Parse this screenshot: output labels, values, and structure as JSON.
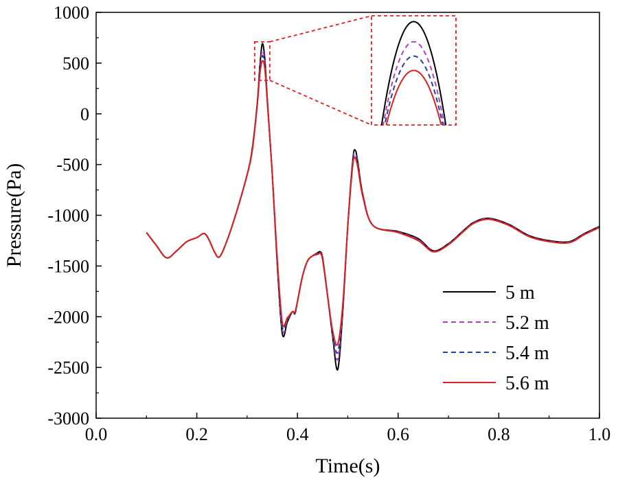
{
  "chart_data": {
    "type": "line",
    "xlabel": "Time(s)",
    "ylabel": "Pressure(Pa)",
    "xlim": [
      0.0,
      1.0
    ],
    "ylim": [
      -3000,
      1000
    ],
    "xticks": [
      "0.0",
      "0.2",
      "0.4",
      "0.6",
      "0.8",
      "1.0"
    ],
    "xtick_values": [
      0.0,
      0.2,
      0.4,
      0.6,
      0.8,
      1.0
    ],
    "yticks": [
      "1000",
      "500",
      "0",
      "-500",
      "-1000",
      "-1500",
      "-2000",
      "-2500",
      "-3000"
    ],
    "ytick_values": [
      1000,
      500,
      0,
      -500,
      -1000,
      -1500,
      -2000,
      -2500,
      -3000
    ],
    "grid": false,
    "legend_position": "bottom-right",
    "inset": {
      "type": "zoom",
      "x_range": [
        0.315,
        0.345
      ],
      "y_range": [
        330,
        710
      ],
      "border_color": "#e02020"
    },
    "x": [
      0.1,
      0.12,
      0.14,
      0.16,
      0.18,
      0.2,
      0.215,
      0.225,
      0.235,
      0.245,
      0.26,
      0.28,
      0.3,
      0.31,
      0.32,
      0.325,
      0.33,
      0.335,
      0.34,
      0.35,
      0.36,
      0.37,
      0.38,
      0.39,
      0.395,
      0.4,
      0.41,
      0.42,
      0.43,
      0.44,
      0.445,
      0.45,
      0.46,
      0.47,
      0.48,
      0.49,
      0.5,
      0.51,
      0.515,
      0.52,
      0.53,
      0.55,
      0.6,
      0.64,
      0.67,
      0.7,
      0.73,
      0.75,
      0.78,
      0.82,
      0.86,
      0.9,
      0.94,
      0.97,
      1.0
    ],
    "series": [
      {
        "name": "5 m",
        "color": "#000000",
        "dash": "solid",
        "values": [
          -1170,
          -1300,
          -1420,
          -1350,
          -1260,
          -1220,
          -1180,
          -1250,
          -1360,
          -1410,
          -1250,
          -950,
          -600,
          -350,
          100,
          450,
          690,
          550,
          150,
          -600,
          -1500,
          -2170,
          -2050,
          -1950,
          -1970,
          -1850,
          -1600,
          -1450,
          -1400,
          -1370,
          -1360,
          -1420,
          -1800,
          -2200,
          -2520,
          -1950,
          -1100,
          -450,
          -360,
          -480,
          -800,
          -1100,
          -1160,
          -1230,
          -1350,
          -1280,
          -1150,
          -1070,
          -1030,
          -1090,
          -1200,
          -1250,
          -1260,
          -1180,
          -1110
        ]
      },
      {
        "name": "5.2 m",
        "color": "#b040c0",
        "dash": "dashed",
        "values": [
          -1170,
          -1300,
          -1420,
          -1350,
          -1260,
          -1220,
          -1180,
          -1250,
          -1360,
          -1410,
          -1250,
          -950,
          -600,
          -360,
          90,
          420,
          620,
          510,
          140,
          -600,
          -1480,
          -2130,
          -2030,
          -1950,
          -1965,
          -1850,
          -1600,
          -1450,
          -1400,
          -1375,
          -1365,
          -1430,
          -1800,
          -2180,
          -2420,
          -1920,
          -1100,
          -470,
          -390,
          -500,
          -810,
          -1100,
          -1165,
          -1240,
          -1355,
          -1285,
          -1155,
          -1075,
          -1035,
          -1095,
          -1205,
          -1255,
          -1265,
          -1185,
          -1115
        ]
      },
      {
        "name": "5.4 m",
        "color": "#2040a0",
        "dash": "dashed",
        "values": [
          -1170,
          -1300,
          -1420,
          -1350,
          -1260,
          -1220,
          -1180,
          -1250,
          -1360,
          -1410,
          -1250,
          -950,
          -600,
          -365,
          85,
          400,
          570,
          480,
          130,
          -600,
          -1460,
          -2100,
          -2020,
          -1950,
          -1960,
          -1850,
          -1600,
          -1450,
          -1400,
          -1380,
          -1370,
          -1435,
          -1800,
          -2160,
          -2350,
          -1900,
          -1100,
          -480,
          -410,
          -510,
          -815,
          -1100,
          -1168,
          -1245,
          -1358,
          -1288,
          -1158,
          -1078,
          -1038,
          -1098,
          -1208,
          -1258,
          -1268,
          -1188,
          -1118
        ]
      },
      {
        "name": "5.6 m",
        "color": "#e02020",
        "dash": "solid",
        "values": [
          -1170,
          -1300,
          -1420,
          -1350,
          -1260,
          -1220,
          -1180,
          -1250,
          -1360,
          -1410,
          -1250,
          -950,
          -600,
          -370,
          80,
          380,
          520,
          450,
          120,
          -600,
          -1440,
          -2060,
          -2010,
          -1950,
          -1955,
          -1850,
          -1600,
          -1450,
          -1400,
          -1385,
          -1375,
          -1440,
          -1800,
          -2140,
          -2270,
          -1880,
          -1100,
          -500,
          -440,
          -530,
          -820,
          -1100,
          -1170,
          -1250,
          -1360,
          -1290,
          -1160,
          -1080,
          -1040,
          -1100,
          -1210,
          -1260,
          -1270,
          -1190,
          -1120
        ]
      }
    ]
  }
}
